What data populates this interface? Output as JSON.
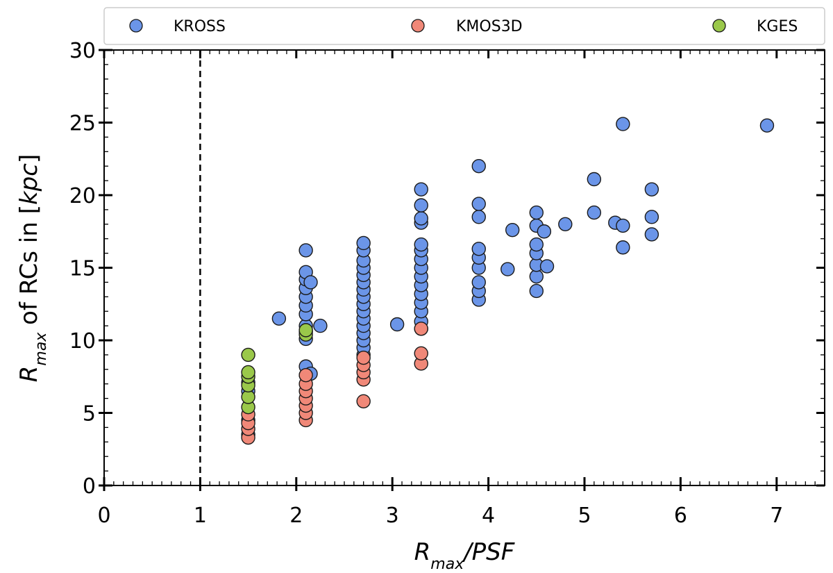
{
  "chart_data": {
    "type": "scatter",
    "xlabel": {
      "main": "R",
      "sub": "max",
      "rest": "/PSF"
    },
    "ylabel": {
      "main": "R",
      "sub": "max",
      "rest": " of RCs in [",
      "unit": "kpc",
      "close": "]"
    },
    "xlim": [
      0,
      7.5
    ],
    "ylim": [
      0,
      30
    ],
    "x_ticks": [
      "0",
      "1",
      "2",
      "3",
      "4",
      "5",
      "6",
      "7"
    ],
    "y_ticks": [
      "0",
      "5",
      "10",
      "15",
      "20",
      "25",
      "30"
    ],
    "x_tick_values": [
      0,
      1,
      2,
      3,
      4,
      5,
      6,
      7
    ],
    "y_tick_values": [
      0,
      5,
      10,
      15,
      20,
      25,
      30
    ],
    "reference_line": {
      "x": 1,
      "style": "dashed"
    },
    "legend_position": "top, outside, spanning width",
    "colors": {
      "KROSS": "#6b95e8",
      "KMOS3D": "#f08878",
      "KGES": "#9ac84a",
      "edge": "#1a1a1a"
    },
    "series": [
      {
        "name": "KROSS",
        "points": [
          [
            1.5,
            3.5
          ],
          [
            1.5,
            4.5
          ],
          [
            1.5,
            6.5
          ],
          [
            1.5,
            7.1
          ],
          [
            1.82,
            11.5
          ],
          [
            2.1,
            7.6
          ],
          [
            2.1,
            8.2
          ],
          [
            2.1,
            10.1
          ],
          [
            2.1,
            10.6
          ],
          [
            2.1,
            11.0
          ],
          [
            2.1,
            11.8
          ],
          [
            2.1,
            12.4
          ],
          [
            2.1,
            13.0
          ],
          [
            2.1,
            13.6
          ],
          [
            2.1,
            14.2
          ],
          [
            2.1,
            14.7
          ],
          [
            2.1,
            16.2
          ],
          [
            2.15,
            14.0
          ],
          [
            2.15,
            7.7
          ],
          [
            2.25,
            11.0
          ],
          [
            2.7,
            9.0
          ],
          [
            2.7,
            9.5
          ],
          [
            2.7,
            10.0
          ],
          [
            2.7,
            10.5
          ],
          [
            2.7,
            11.0
          ],
          [
            2.7,
            11.5
          ],
          [
            2.7,
            12.0
          ],
          [
            2.7,
            12.5
          ],
          [
            2.7,
            13.0
          ],
          [
            2.7,
            13.5
          ],
          [
            2.7,
            14.0
          ],
          [
            2.7,
            14.5
          ],
          [
            2.7,
            15.0
          ],
          [
            2.7,
            15.5
          ],
          [
            2.7,
            16.2
          ],
          [
            2.7,
            16.7
          ],
          [
            3.05,
            11.1
          ],
          [
            3.3,
            10.8
          ],
          [
            3.3,
            11.3
          ],
          [
            3.3,
            12.0
          ],
          [
            3.3,
            12.6
          ],
          [
            3.3,
            13.2
          ],
          [
            3.3,
            13.8
          ],
          [
            3.3,
            14.4
          ],
          [
            3.3,
            15.0
          ],
          [
            3.3,
            15.6
          ],
          [
            3.3,
            16.2
          ],
          [
            3.3,
            16.6
          ],
          [
            3.3,
            18.1
          ],
          [
            3.3,
            18.4
          ],
          [
            3.3,
            19.3
          ],
          [
            3.3,
            20.4
          ],
          [
            3.9,
            12.8
          ],
          [
            3.9,
            13.4
          ],
          [
            3.9,
            14.0
          ],
          [
            3.9,
            15.0
          ],
          [
            3.9,
            15.7
          ],
          [
            3.9,
            16.3
          ],
          [
            3.9,
            18.5
          ],
          [
            3.9,
            19.4
          ],
          [
            3.9,
            22.0
          ],
          [
            4.2,
            14.9
          ],
          [
            4.25,
            17.6
          ],
          [
            4.5,
            13.4
          ],
          [
            4.5,
            14.4
          ],
          [
            4.5,
            15.2
          ],
          [
            4.5,
            16.0
          ],
          [
            4.5,
            16.6
          ],
          [
            4.5,
            17.9
          ],
          [
            4.5,
            18.8
          ],
          [
            4.58,
            17.5
          ],
          [
            4.61,
            15.1
          ],
          [
            4.8,
            18.0
          ],
          [
            5.1,
            21.1
          ],
          [
            5.1,
            18.8
          ],
          [
            5.32,
            18.1
          ],
          [
            5.4,
            17.9
          ],
          [
            5.4,
            16.4
          ],
          [
            5.4,
            24.9
          ],
          [
            5.7,
            20.4
          ],
          [
            5.7,
            18.5
          ],
          [
            5.7,
            17.3
          ],
          [
            6.9,
            24.8
          ]
        ]
      },
      {
        "name": "KMOS3D",
        "points": [
          [
            1.5,
            3.3
          ],
          [
            1.5,
            3.9
          ],
          [
            1.5,
            4.3
          ],
          [
            1.5,
            4.9
          ],
          [
            2.1,
            4.5
          ],
          [
            2.1,
            5.0
          ],
          [
            2.1,
            5.5
          ],
          [
            2.1,
            6.0
          ],
          [
            2.1,
            6.5
          ],
          [
            2.1,
            7.0
          ],
          [
            2.1,
            7.6
          ],
          [
            2.7,
            5.8
          ],
          [
            2.7,
            7.3
          ],
          [
            2.7,
            7.8
          ],
          [
            2.7,
            8.3
          ],
          [
            2.7,
            8.8
          ],
          [
            3.3,
            8.4
          ],
          [
            3.3,
            9.1
          ],
          [
            3.3,
            10.8
          ]
        ]
      },
      {
        "name": "KGES",
        "points": [
          [
            1.5,
            5.4
          ],
          [
            1.5,
            6.1
          ],
          [
            1.5,
            6.9
          ],
          [
            1.5,
            7.5
          ],
          [
            1.5,
            7.8
          ],
          [
            1.5,
            9.0
          ],
          [
            2.1,
            10.4
          ],
          [
            2.1,
            10.7
          ]
        ]
      }
    ]
  }
}
